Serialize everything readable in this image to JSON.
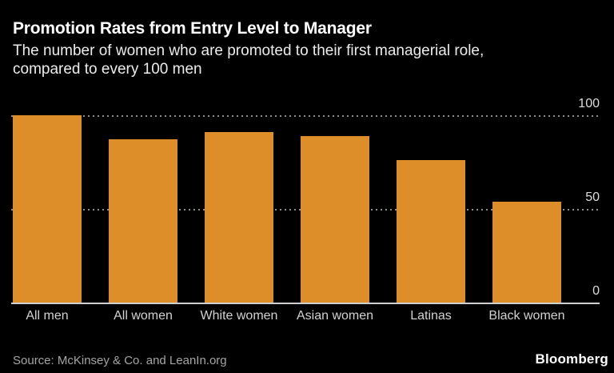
{
  "header": {
    "title": "Promotion Rates from Entry Level to Manager",
    "subtitle_line1": "The number of women who are promoted to their first managerial role,",
    "subtitle_line2": "compared to every 100 men"
  },
  "chart_data": {
    "type": "bar",
    "title": "Promotion Rates from Entry Level to Manager",
    "subtitle": "The number of women who are promoted to their first managerial role, compared to every 100 men",
    "categories": [
      "All men",
      "All women",
      "White women",
      "Asian women",
      "Latinas",
      "Black women"
    ],
    "values": [
      100,
      87,
      91,
      89,
      76,
      54
    ],
    "xlabel": "",
    "ylabel": "",
    "ylim": [
      0,
      100
    ],
    "yticks": [
      0,
      50,
      100
    ],
    "ytick_labels": [
      "0",
      "50",
      "100"
    ],
    "tick_label_side": "right",
    "grid": "dotted-horizontal",
    "legend": "none",
    "bar_color": "#DD8E29"
  },
  "footer": {
    "source": "Source: McKinsey & Co. and LeanIn.org",
    "brand": "Bloomberg"
  },
  "colors": {
    "background": "#000000",
    "bar": "#DD8E29",
    "title": "#FFFFFF",
    "subtitle": "#ECECEC",
    "tick_label": "#DCDCDC",
    "category_label": "#D2D2D2",
    "gridline": "#8D8D8D",
    "baseline": "#CFCFCF",
    "source_text": "#A5A5A5",
    "brand_text": "#FFFFFF"
  }
}
